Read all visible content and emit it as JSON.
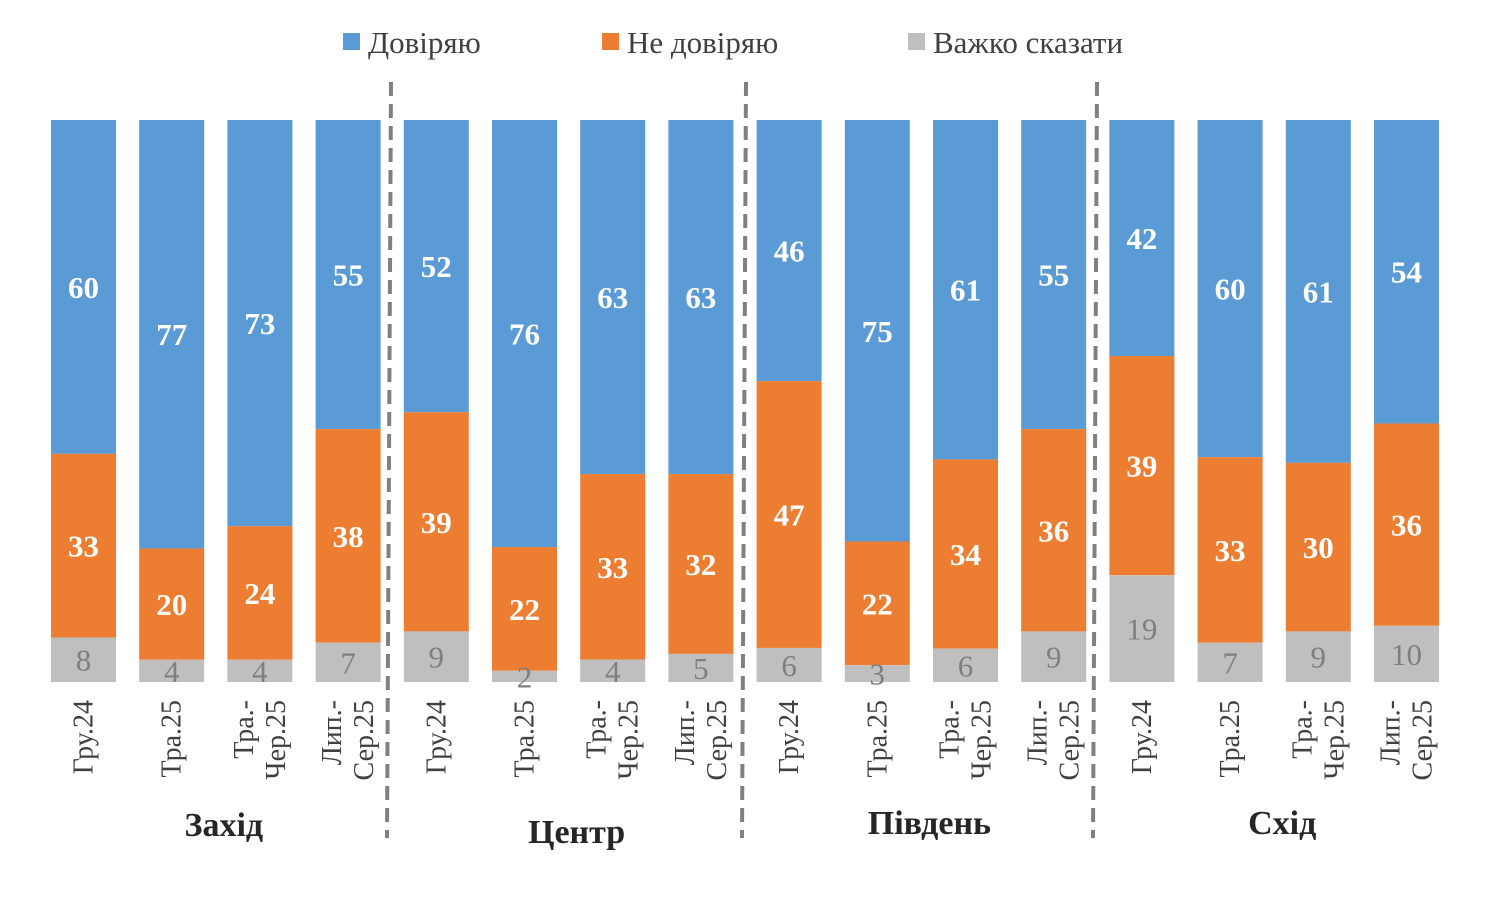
{
  "chart_data": {
    "type": "bar",
    "stacked": true,
    "normalized": true,
    "title": "",
    "xlabel": "",
    "ylabel": "",
    "legend_position": "top",
    "grid": false,
    "series": [
      {
        "name": "Довіряю",
        "color": "#5b9bd5",
        "values": [
          60,
          77,
          73,
          55,
          52,
          76,
          63,
          63,
          46,
          75,
          61,
          55,
          42,
          60,
          61,
          54
        ]
      },
      {
        "name": "Не довіряю",
        "color": "#ed7d31",
        "values": [
          33,
          20,
          24,
          38,
          39,
          22,
          33,
          32,
          47,
          22,
          34,
          36,
          39,
          33,
          30,
          36
        ]
      },
      {
        "name": "Важко сказати",
        "color": "#bfbfbf",
        "values": [
          8,
          4,
          4,
          7,
          9,
          2,
          4,
          5,
          6,
          3,
          6,
          9,
          19,
          7,
          9,
          10
        ]
      }
    ],
    "groups": [
      {
        "name": "Захід",
        "categories": [
          [
            "Гру.24"
          ],
          [
            "Тра.25"
          ],
          [
            "Тра.-",
            "Чер.25"
          ],
          [
            "Лип.-",
            "Сер.25"
          ]
        ]
      },
      {
        "name": "Центр",
        "categories": [
          [
            "Гру.24"
          ],
          [
            "Тра.25"
          ],
          [
            "Тра.-",
            "Чер.25"
          ],
          [
            "Лип.-",
            "Сер.25"
          ]
        ]
      },
      {
        "name": "Південь",
        "categories": [
          [
            "Гру.24"
          ],
          [
            "Тра.25"
          ],
          [
            "Тра.-",
            "Чер.25"
          ],
          [
            "Лип.-",
            "Сер.25"
          ]
        ]
      },
      {
        "name": "Схід",
        "categories": [
          [
            "Гру.24"
          ],
          [
            "Тра.25"
          ],
          [
            "Тра.-",
            "Чер.25"
          ],
          [
            "Лип.-",
            "Сер.25"
          ]
        ]
      }
    ],
    "categories": [
      "Гру.24",
      "Тра.25",
      "Тра.-Чер.25",
      "Лип.-Сер.25",
      "Гру.24",
      "Тра.25",
      "Тра.-Чер.25",
      "Лип.-Сер.25",
      "Гру.24",
      "Тра.25",
      "Тра.-Чер.25",
      "Лип.-Сер.25",
      "Гру.24",
      "Тра.25",
      "Тра.-Чер.25",
      "Лип.-Сер.25"
    ]
  }
}
